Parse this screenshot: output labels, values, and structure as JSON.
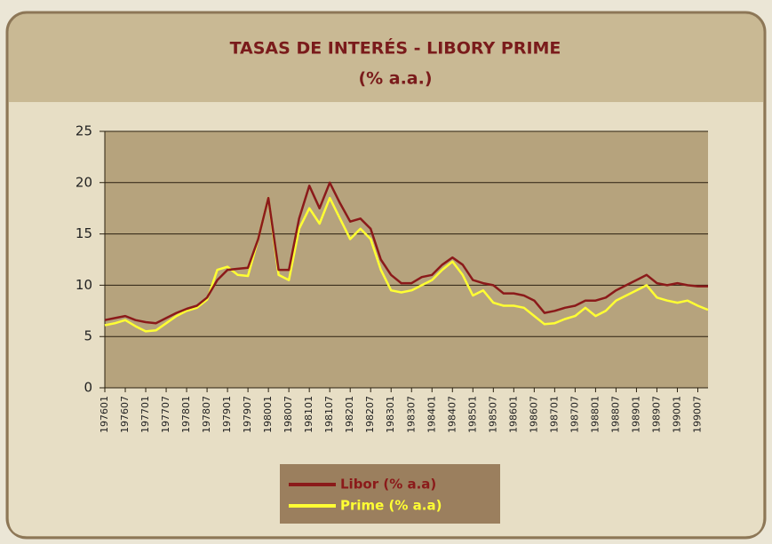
{
  "chart_data": {
    "type": "line",
    "title": "TASAS DE INTERÉS - LIBORY PRIME",
    "subtitle": "(% a.a.)",
    "categories": [
      "197601",
      null,
      "197607",
      null,
      "197701",
      null,
      "197707",
      null,
      "197801",
      null,
      "197807",
      null,
      "197901",
      null,
      "197907",
      null,
      "198001",
      null,
      "198007",
      null,
      "198101",
      null,
      "198107",
      null,
      "198201",
      null,
      "198207",
      null,
      "198301",
      null,
      "198307",
      null,
      "198401",
      null,
      "198407",
      null,
      "198501",
      null,
      "198507",
      null,
      "198601",
      null,
      "198607",
      null,
      "198701",
      null,
      "198707",
      null,
      "198801",
      null,
      "198807",
      null,
      "198901",
      null,
      "198907",
      null,
      "199001",
      null,
      "199007",
      null
    ],
    "series": [
      {
        "name": "Libor (% a.a)",
        "color": "#8b1a1a",
        "values": [
          6.6,
          6.8,
          7.0,
          6.6,
          6.4,
          6.3,
          6.8,
          7.3,
          7.7,
          8.0,
          8.8,
          10.5,
          11.5,
          11.6,
          11.7,
          14.5,
          18.5,
          11.5,
          11.5,
          16.5,
          19.7,
          17.5,
          20.0,
          18.0,
          16.2,
          16.5,
          15.5,
          12.5,
          11.0,
          10.2,
          10.2,
          10.8,
          11.0,
          12.0,
          12.7,
          12.0,
          10.5,
          10.2,
          10.0,
          9.2,
          9.2,
          9.0,
          8.5,
          7.3,
          7.5,
          7.8,
          8.0,
          8.5,
          8.5,
          8.8,
          9.5,
          10.0,
          10.5,
          11.0,
          10.2,
          10.0,
          10.2,
          10.0,
          9.9,
          9.9
        ]
      },
      {
        "name": "Prime (% a.a)",
        "color": "#ffff33",
        "values": [
          6.1,
          6.3,
          6.6,
          6.0,
          5.5,
          5.6,
          6.3,
          7.0,
          7.5,
          7.8,
          8.6,
          11.5,
          11.8,
          11.0,
          10.9,
          14.5,
          18.5,
          11.0,
          10.5,
          15.5,
          17.5,
          16.0,
          18.5,
          16.5,
          14.5,
          15.5,
          14.5,
          11.5,
          9.5,
          9.3,
          9.5,
          10.0,
          10.5,
          11.5,
          12.3,
          11.0,
          9.0,
          9.5,
          8.3,
          8.0,
          8.0,
          7.8,
          7.0,
          6.2,
          6.3,
          6.7,
          7.0,
          7.8,
          7.0,
          7.5,
          8.5,
          9.0,
          9.5,
          10.0,
          8.8,
          8.5,
          8.3,
          8.5,
          8.0,
          7.6
        ]
      }
    ],
    "ylim": [
      0,
      25
    ],
    "yticks": [
      0,
      5,
      10,
      15,
      20,
      25
    ],
    "grid": true
  }
}
